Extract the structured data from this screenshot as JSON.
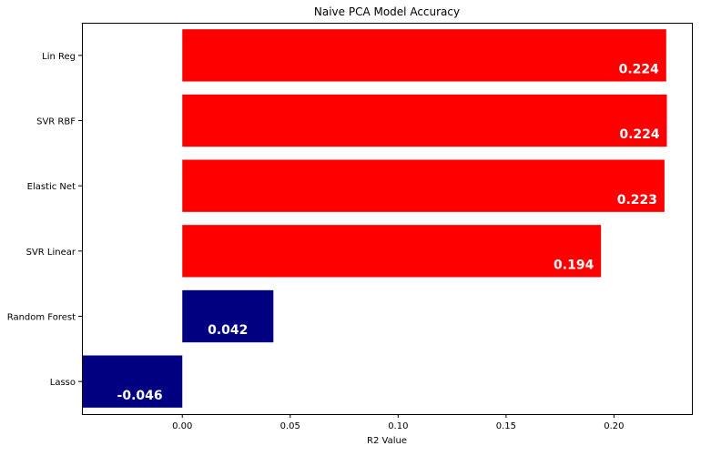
{
  "chart_data": {
    "type": "bar",
    "orientation": "horizontal",
    "title": "Naive PCA Model Accuracy",
    "xlabel": "R2 Value",
    "ylabel": "",
    "categories": [
      "Lin Reg",
      "SVR RBF",
      "Elastic Net",
      "SVR Linear",
      "Random Forest",
      "Lasso"
    ],
    "values": [
      0.2242,
      0.2245,
      0.2234,
      0.194,
      0.0422,
      -0.0461
    ],
    "data_labels": [
      "0.224",
      "0.224",
      "0.223",
      "0.194",
      "0.042",
      "-0.046"
    ],
    "bar_colors": [
      "#ff0000",
      "#ff0000",
      "#ff0000",
      "#ff0000",
      "#000080",
      "#000080"
    ],
    "xlim": [
      -0.0465,
      0.2361
    ],
    "xticks": [
      0.0,
      0.05,
      0.1,
      0.15,
      0.2
    ],
    "xtick_labels": [
      "0.00",
      "0.05",
      "0.10",
      "0.15",
      "0.20"
    ],
    "grid": false,
    "legend": "none"
  }
}
